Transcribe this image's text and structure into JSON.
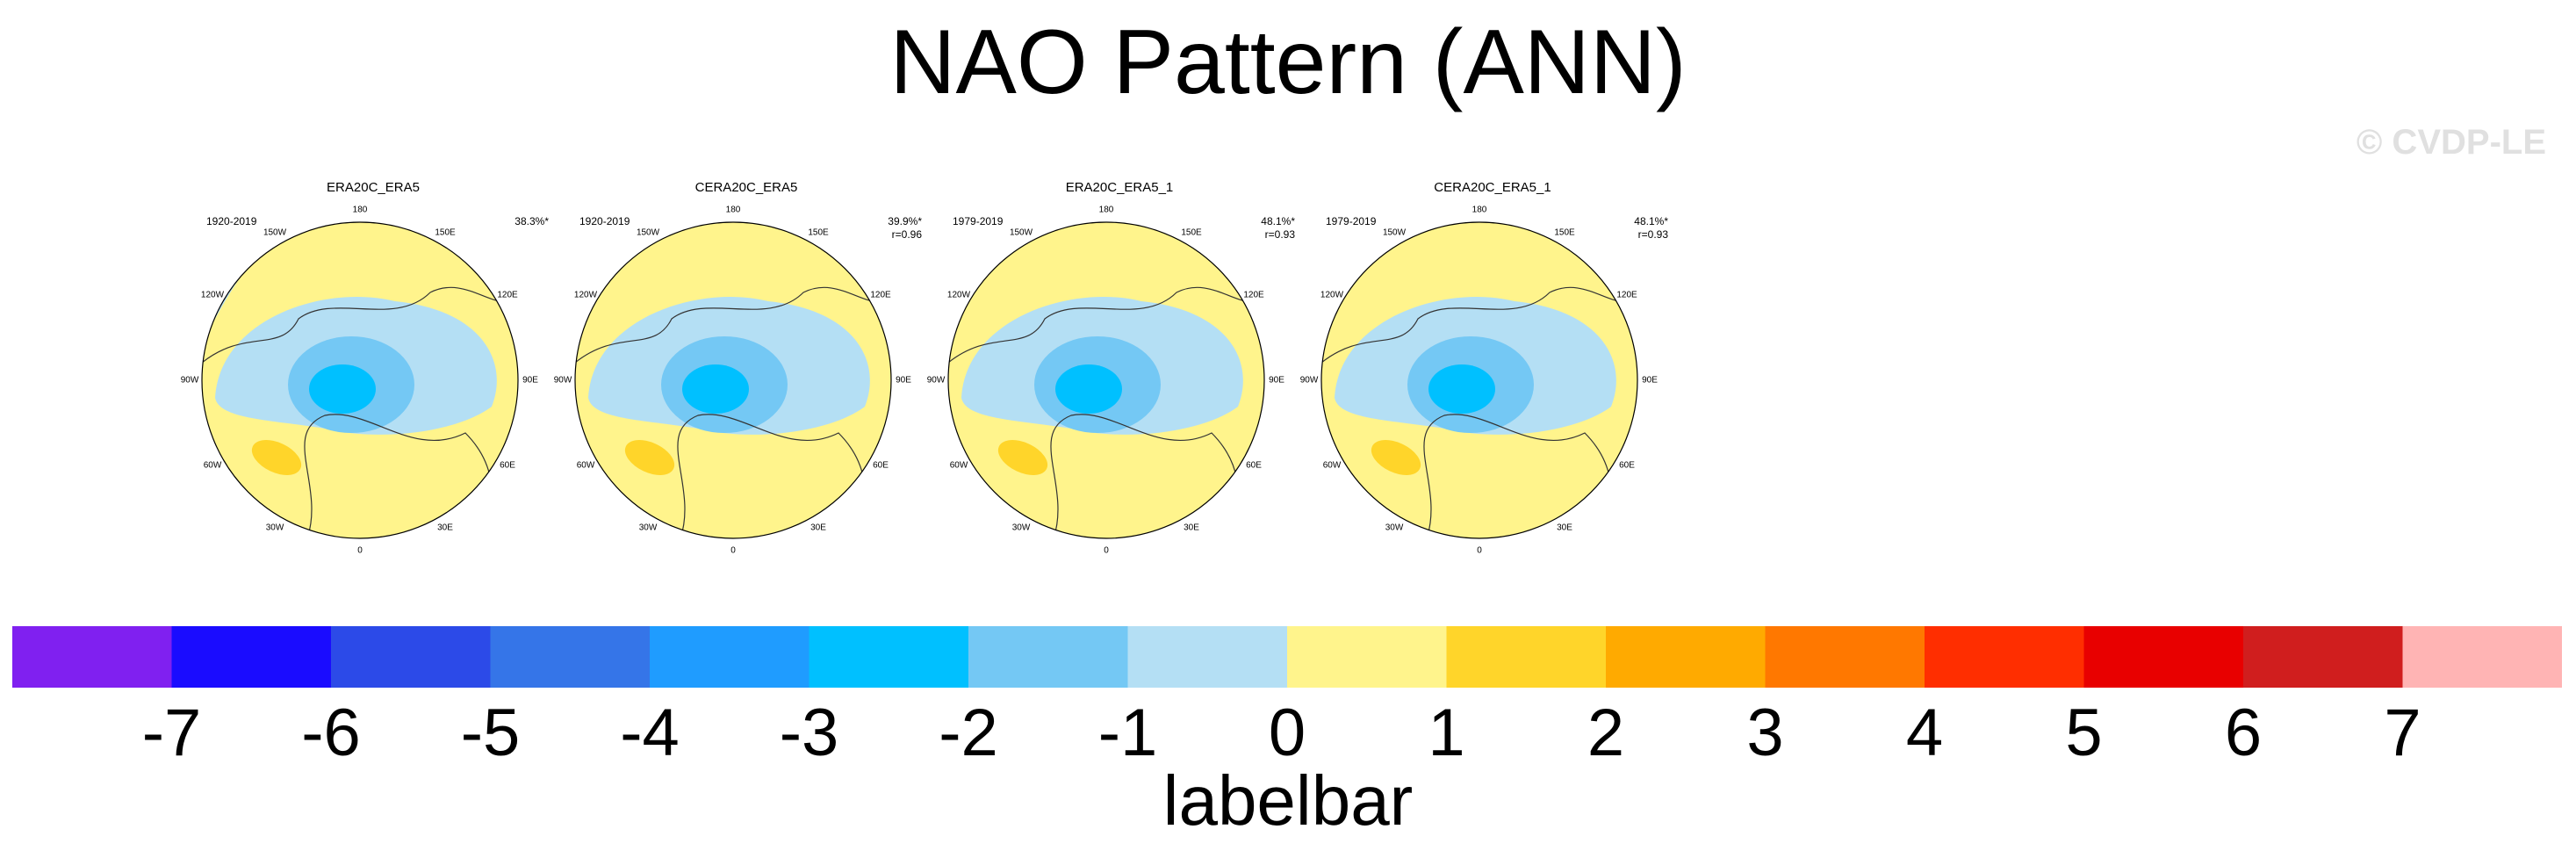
{
  "title": "NAO Pattern (ANN)",
  "watermark": "© CVDP-LE",
  "chart_data": {
    "type": "heatmap",
    "projection": "north-polar-stereographic",
    "maps": [
      {
        "title": "ERA20C_ERA5",
        "period": "1920-2019",
        "variance_explained": "38.3%*",
        "pattern_correlation": ""
      },
      {
        "title": "CERA20C_ERA5",
        "period": "1920-2019",
        "variance_explained": "39.9%*",
        "pattern_correlation": "r=0.96"
      },
      {
        "title": "ERA20C_ERA5_1",
        "period": "1979-2019",
        "variance_explained": "48.1%*",
        "pattern_correlation": "r=0.93"
      },
      {
        "title": "CERA20C_ERA5_1",
        "period": "1979-2019",
        "variance_explained": "48.1%*",
        "pattern_correlation": "r=0.93"
      }
    ],
    "longitude_labels": [
      "180",
      "150E",
      "120E",
      "90E",
      "60E",
      "30E",
      "0",
      "30W",
      "60W",
      "90W",
      "120W",
      "150W"
    ],
    "colorbar": {
      "label": "labelbar",
      "levels": [
        -7,
        -6,
        -5,
        -4,
        -3,
        -2,
        -1,
        0,
        1,
        2,
        3,
        4,
        5,
        6,
        7
      ],
      "colors": [
        "#8020f0",
        "#1a0cff",
        "#2c4ae8",
        "#3575e8",
        "#1f9cff",
        "#00c0ff",
        "#74c8f4",
        "#b4dff4",
        "#fff48c",
        "#ffd52a",
        "#ffaa00",
        "#ff7800",
        "#ff2e00",
        "#e80000",
        "#d01e1e",
        "#ffb4b4"
      ]
    }
  }
}
